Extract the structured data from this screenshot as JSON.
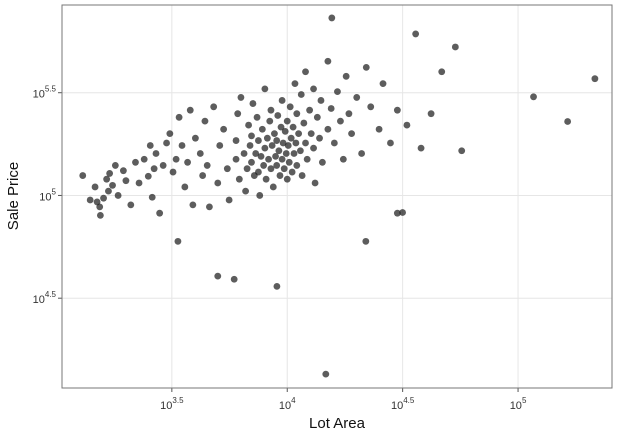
{
  "chart_data": {
    "type": "scatter",
    "x_label": "Lot Area",
    "y_label": "Sale Price",
    "log_x": true,
    "log_y": true,
    "grid": true,
    "xlim": [
      1057,
      255300
    ],
    "ylim": [
      11560,
      845000
    ],
    "xticks": [
      {
        "value": 3162.2776601683795,
        "label": "10^3.5"
      },
      {
        "value": 10000,
        "label": "10^4"
      },
      {
        "value": 31622.776601683792,
        "label": "10^4.5"
      },
      {
        "value": 100000,
        "label": "10^5"
      }
    ],
    "yticks": [
      {
        "value": 31622.776601683792,
        "label": "10^4.5"
      },
      {
        "value": 100000,
        "label": "10^5"
      },
      {
        "value": 316227.7660168379,
        "label": "10^5.5"
      }
    ],
    "series": [
      {
        "color": "#1e1e1e",
        "x": [
          1300,
          1470,
          1500,
          1540,
          1600,
          1650,
          1680,
          1700,
          1750,
          1800,
          1850,
          1950,
          2000,
          2100,
          2200,
          2280,
          2400,
          2500,
          2550,
          2600,
          2650,
          2700,
          2800,
          2900,
          3000,
          3100,
          3200,
          3300,
          3360,
          3400,
          3500,
          3600,
          3700,
          3800,
          3900,
          4000,
          4200,
          4300,
          4400,
          4500,
          4600,
          4800,
          5000,
          5000,
          5100,
          5300,
          5500,
          5600,
          5890,
          6000,
          6000,
          6100,
          6200,
          6300,
          6500,
          6600,
          6700,
          6800,
          6900,
          7000,
          7000,
          7100,
          7200,
          7300,
          7400,
          7500,
          7500,
          7600,
          7700,
          7800,
          7900,
          8000,
          8000,
          8100,
          8200,
          8300,
          8400,
          8500,
          8500,
          8600,
          8700,
          8800,
          8900,
          9000,
          9000,
          9020,
          9100,
          9200,
          9300,
          9400,
          9500,
          9500,
          9600,
          9700,
          9800,
          9900,
          10000,
          10000,
          10100,
          10200,
          10300,
          10400,
          10500,
          10600,
          10700,
          10800,
          10900,
          11000,
          11000,
          11200,
          11400,
          11500,
          11600,
          11800,
          12000,
          12000,
          12200,
          12500,
          12700,
          13000,
          13000,
          13200,
          13500,
          13800,
          14000,
          14200,
          14690,
          15000,
          15000,
          15500,
          15600,
          16000,
          16500,
          17000,
          17500,
          18000,
          18500,
          19000,
          20000,
          21000,
          21900,
          22000,
          23000,
          25000,
          26000,
          28000,
          30000,
          31600,
          33000,
          36000,
          38000,
          42000,
          46700,
          53500,
          57000,
          116700,
          164000,
          215245,
          1400,
          1550,
          30000
        ],
        "values": [
          125000,
          110000,
          93000,
          88000,
          97000,
          120000,
          105000,
          128000,
          112000,
          140000,
          100000,
          132000,
          118000,
          90000,
          145000,
          115000,
          150000,
          124000,
          175000,
          98000,
          135000,
          160000,
          82000,
          140000,
          180000,
          200000,
          130000,
          150000,
          59800,
          240000,
          175000,
          110000,
          145000,
          260000,
          90000,
          190000,
          160000,
          125000,
          230000,
          140000,
          88000,
          270000,
          40500,
          115000,
          175000,
          210000,
          135000,
          95000,
          39100,
          150000,
          185000,
          250000,
          120000,
          300000,
          160000,
          105000,
          135000,
          220000,
          175000,
          145000,
          195000,
          280000,
          125000,
          160000,
          240000,
          130000,
          185000,
          100000,
          155000,
          210000,
          140000,
          170000,
          330000,
          120000,
          190000,
          150000,
          230000,
          135000,
          260000,
          175000,
          110000,
          200000,
          155000,
          140000,
          185000,
          36100,
          245000,
          165000,
          125000,
          215000,
          150000,
          290000,
          180000,
          135000,
          205000,
          160000,
          120000,
          230000,
          175000,
          145000,
          270000,
          190000,
          130000,
          215000,
          160000,
          350000,
          180000,
          140000,
          250000,
          200000,
          165000,
          310000,
          125000,
          225000,
          180000,
          400000,
          150000,
          260000,
          200000,
          170000,
          330000,
          115000,
          240000,
          190000,
          290000,
          145000,
          13500,
          210000,
          450000,
          265000,
          731000,
          180000,
          320000,
          230000,
          150000,
          380000,
          250000,
          200000,
          300000,
          160000,
          59800,
          420000,
          270000,
          210000,
          350000,
          180000,
          260000,
          82600,
          220000,
          611000,
          170000,
          250000,
          400000,
          528000,
          165000,
          302000,
          228950,
          370000,
          95000,
          80000,
          82000
        ]
      }
    ]
  }
}
